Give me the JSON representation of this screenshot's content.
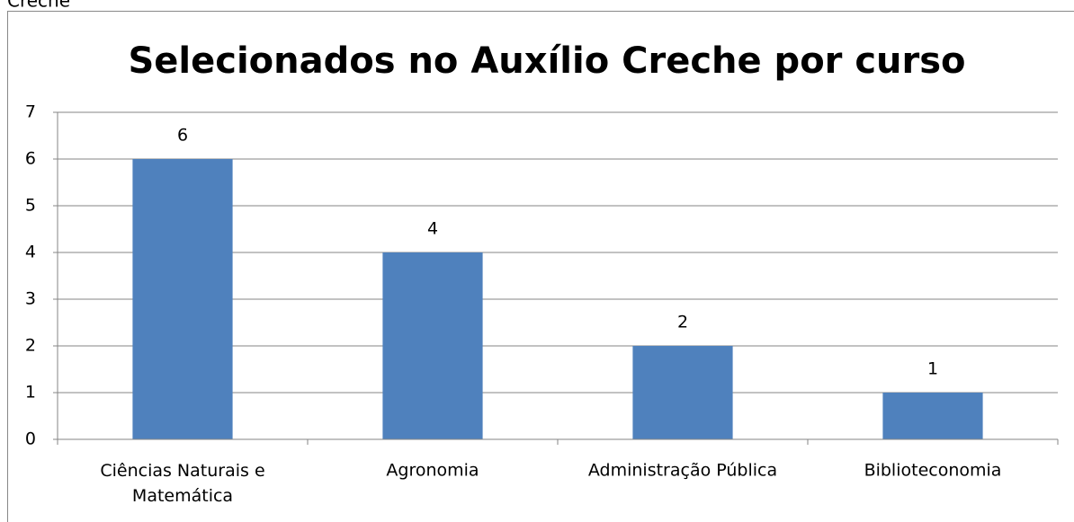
{
  "header_fragment": "Creche",
  "chart_data": {
    "type": "bar",
    "title": "Selecionados no Auxílio Creche por curso",
    "categories": [
      "Ciências Naturais e Matemática",
      "Agronomia",
      "Administração Pública",
      "Biblioteconomia"
    ],
    "values": [
      6,
      4,
      2,
      1
    ],
    "color": "#4f81bd",
    "ylim": [
      0,
      7
    ],
    "yticks": [
      0,
      1,
      2,
      3,
      4,
      5,
      6,
      7
    ],
    "grid": true,
    "data_labels": true
  }
}
